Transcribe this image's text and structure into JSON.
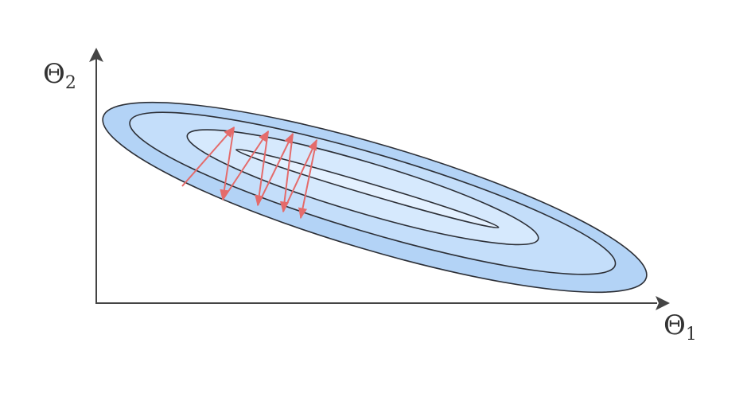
{
  "axes": {
    "y_label": {
      "main": "Θ",
      "sub": "2"
    },
    "x_label": {
      "main": "Θ",
      "sub": "1"
    }
  },
  "colors": {
    "axis": "#444444",
    "outer_fill": "#b3d3f6",
    "middle_fill": "#c4defa",
    "inner_fill": "#d6e9fd",
    "core_fill": "#e4f1ff",
    "contour_stroke": "#2c2f36",
    "path_arrow": "#e46b6b"
  },
  "contours": [
    "outer",
    "middle",
    "inner",
    "core"
  ],
  "optimization_path": {
    "steps": 7
  }
}
